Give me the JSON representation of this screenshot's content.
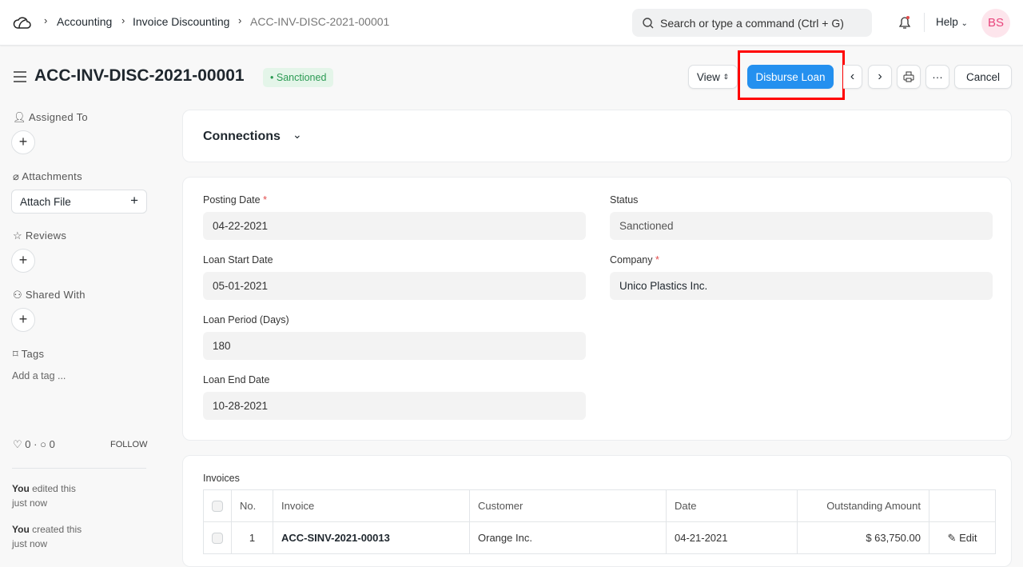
{
  "navbar": {
    "breadcrumbs": [
      "Accounting",
      "Invoice Discounting",
      "ACC-INV-DISC-2021-00001"
    ],
    "search_placeholder": "Search or type a command (Ctrl + G)",
    "help": "Help",
    "avatar": "BS"
  },
  "page": {
    "title": "ACC-INV-DISC-2021-00001",
    "status": "Sanctioned",
    "status_color": "#2b9a53"
  },
  "toolbar": {
    "view": "View",
    "primary": "Disburse Loan",
    "cancel": "Cancel",
    "more": "···",
    "accent": "#2490ef",
    "highlight": "#ff0000"
  },
  "sidebar": {
    "assigned_to": "Assigned To",
    "attachments": "Attachments",
    "attach_file": "Attach File",
    "reviews": "Reviews",
    "shared_with": "Shared With",
    "tags": "Tags",
    "add_tag": "Add a tag ...",
    "likes": "0",
    "comments": "0",
    "follow": "FOLLOW",
    "activity": [
      {
        "who": "You",
        "what": " edited this",
        "when": "just now"
      },
      {
        "who": "You",
        "what": " created this",
        "when": "just now"
      }
    ]
  },
  "connections": "Connections",
  "form": {
    "posting_date_label": "Posting Date",
    "posting_date": "04-22-2021",
    "status_label": "Status",
    "status": "Sanctioned",
    "loan_start_label": "Loan Start Date",
    "loan_start": "05-01-2021",
    "company_label": "Company",
    "company": "Unico Plastics Inc.",
    "loan_period_label": "Loan Period (Days)",
    "loan_period": "180",
    "loan_end_label": "Loan End Date",
    "loan_end": "10-28-2021"
  },
  "invoices": {
    "label": "Invoices",
    "columns": [
      "No.",
      "Invoice",
      "Customer",
      "Date",
      "Outstanding Amount"
    ],
    "rows": [
      {
        "no": "1",
        "invoice": "ACC-SINV-2021-00013",
        "customer": "Orange Inc.",
        "date": "04-21-2021",
        "amount": "$ 63,750.00",
        "edit": "Edit"
      }
    ]
  }
}
